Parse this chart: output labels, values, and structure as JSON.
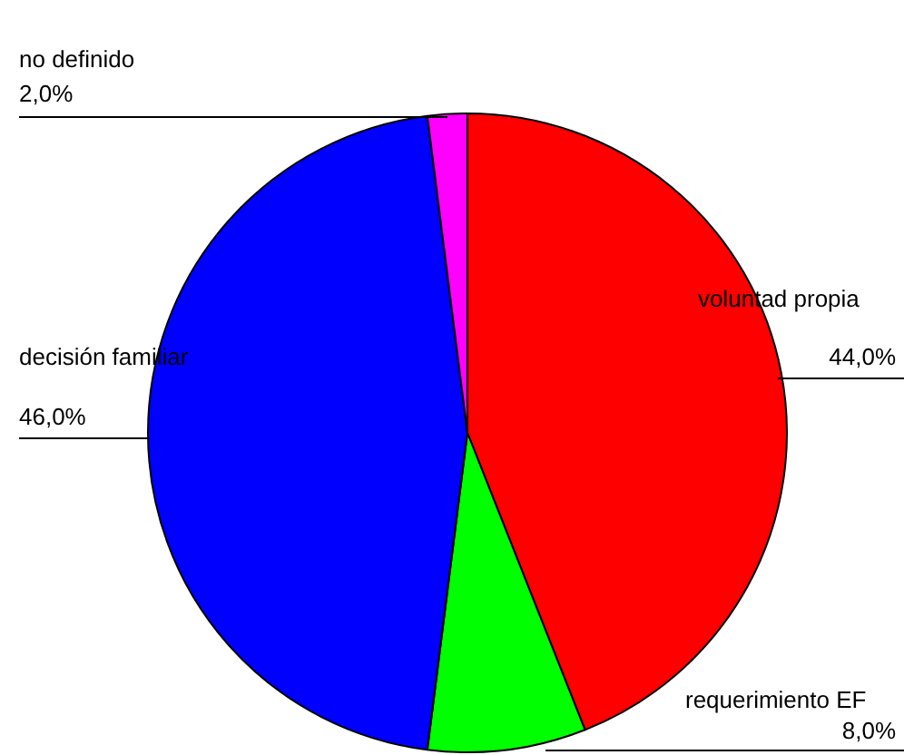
{
  "chart_data": {
    "type": "pie",
    "categories": [
      "voluntad propia",
      "requerimiento EF",
      "decisión familiar",
      "no definido"
    ],
    "values": [
      44,
      8,
      46,
      2
    ],
    "colors": [
      "#ff0000",
      "#00ff00",
      "#0000ff",
      "#ff00ff"
    ],
    "value_labels": [
      "44,0%",
      "8,0%",
      "46,0%",
      "2,0%"
    ]
  }
}
